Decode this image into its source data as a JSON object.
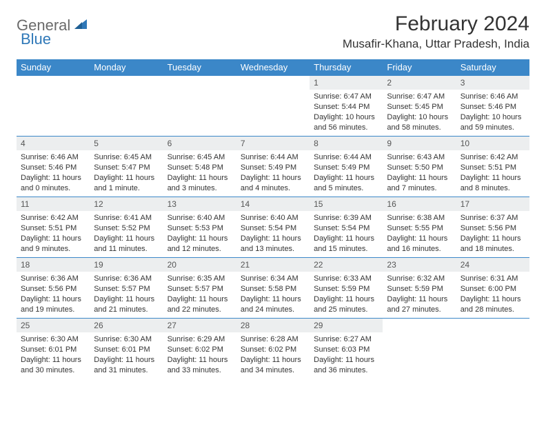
{
  "logo": {
    "text1": "General",
    "text2": "Blue"
  },
  "title": "February 2024",
  "location": "Musafir-Khana, Uttar Pradesh, India",
  "colors": {
    "header_bg": "#3b87c8",
    "header_text": "#ffffff",
    "daynum_bg": "#eceeef",
    "border": "#3b87c8",
    "logo_gray": "#6a6a6a",
    "logo_blue": "#2f78b8"
  },
  "weekdays": [
    "Sunday",
    "Monday",
    "Tuesday",
    "Wednesday",
    "Thursday",
    "Friday",
    "Saturday"
  ],
  "start_day_index": 4,
  "days": [
    {
      "n": 1,
      "sr": "6:47 AM",
      "ss": "5:44 PM",
      "dl": "10 hours and 56 minutes."
    },
    {
      "n": 2,
      "sr": "6:47 AM",
      "ss": "5:45 PM",
      "dl": "10 hours and 58 minutes."
    },
    {
      "n": 3,
      "sr": "6:46 AM",
      "ss": "5:46 PM",
      "dl": "10 hours and 59 minutes."
    },
    {
      "n": 4,
      "sr": "6:46 AM",
      "ss": "5:46 PM",
      "dl": "11 hours and 0 minutes."
    },
    {
      "n": 5,
      "sr": "6:45 AM",
      "ss": "5:47 PM",
      "dl": "11 hours and 1 minute."
    },
    {
      "n": 6,
      "sr": "6:45 AM",
      "ss": "5:48 PM",
      "dl": "11 hours and 3 minutes."
    },
    {
      "n": 7,
      "sr": "6:44 AM",
      "ss": "5:49 PM",
      "dl": "11 hours and 4 minutes."
    },
    {
      "n": 8,
      "sr": "6:44 AM",
      "ss": "5:49 PM",
      "dl": "11 hours and 5 minutes."
    },
    {
      "n": 9,
      "sr": "6:43 AM",
      "ss": "5:50 PM",
      "dl": "11 hours and 7 minutes."
    },
    {
      "n": 10,
      "sr": "6:42 AM",
      "ss": "5:51 PM",
      "dl": "11 hours and 8 minutes."
    },
    {
      "n": 11,
      "sr": "6:42 AM",
      "ss": "5:51 PM",
      "dl": "11 hours and 9 minutes."
    },
    {
      "n": 12,
      "sr": "6:41 AM",
      "ss": "5:52 PM",
      "dl": "11 hours and 11 minutes."
    },
    {
      "n": 13,
      "sr": "6:40 AM",
      "ss": "5:53 PM",
      "dl": "11 hours and 12 minutes."
    },
    {
      "n": 14,
      "sr": "6:40 AM",
      "ss": "5:54 PM",
      "dl": "11 hours and 13 minutes."
    },
    {
      "n": 15,
      "sr": "6:39 AM",
      "ss": "5:54 PM",
      "dl": "11 hours and 15 minutes."
    },
    {
      "n": 16,
      "sr": "6:38 AM",
      "ss": "5:55 PM",
      "dl": "11 hours and 16 minutes."
    },
    {
      "n": 17,
      "sr": "6:37 AM",
      "ss": "5:56 PM",
      "dl": "11 hours and 18 minutes."
    },
    {
      "n": 18,
      "sr": "6:36 AM",
      "ss": "5:56 PM",
      "dl": "11 hours and 19 minutes."
    },
    {
      "n": 19,
      "sr": "6:36 AM",
      "ss": "5:57 PM",
      "dl": "11 hours and 21 minutes."
    },
    {
      "n": 20,
      "sr": "6:35 AM",
      "ss": "5:57 PM",
      "dl": "11 hours and 22 minutes."
    },
    {
      "n": 21,
      "sr": "6:34 AM",
      "ss": "5:58 PM",
      "dl": "11 hours and 24 minutes."
    },
    {
      "n": 22,
      "sr": "6:33 AM",
      "ss": "5:59 PM",
      "dl": "11 hours and 25 minutes."
    },
    {
      "n": 23,
      "sr": "6:32 AM",
      "ss": "5:59 PM",
      "dl": "11 hours and 27 minutes."
    },
    {
      "n": 24,
      "sr": "6:31 AM",
      "ss": "6:00 PM",
      "dl": "11 hours and 28 minutes."
    },
    {
      "n": 25,
      "sr": "6:30 AM",
      "ss": "6:01 PM",
      "dl": "11 hours and 30 minutes."
    },
    {
      "n": 26,
      "sr": "6:30 AM",
      "ss": "6:01 PM",
      "dl": "11 hours and 31 minutes."
    },
    {
      "n": 27,
      "sr": "6:29 AM",
      "ss": "6:02 PM",
      "dl": "11 hours and 33 minutes."
    },
    {
      "n": 28,
      "sr": "6:28 AM",
      "ss": "6:02 PM",
      "dl": "11 hours and 34 minutes."
    },
    {
      "n": 29,
      "sr": "6:27 AM",
      "ss": "6:03 PM",
      "dl": "11 hours and 36 minutes."
    }
  ],
  "labels": {
    "sunrise": "Sunrise:",
    "sunset": "Sunset:",
    "daylight": "Daylight:"
  }
}
